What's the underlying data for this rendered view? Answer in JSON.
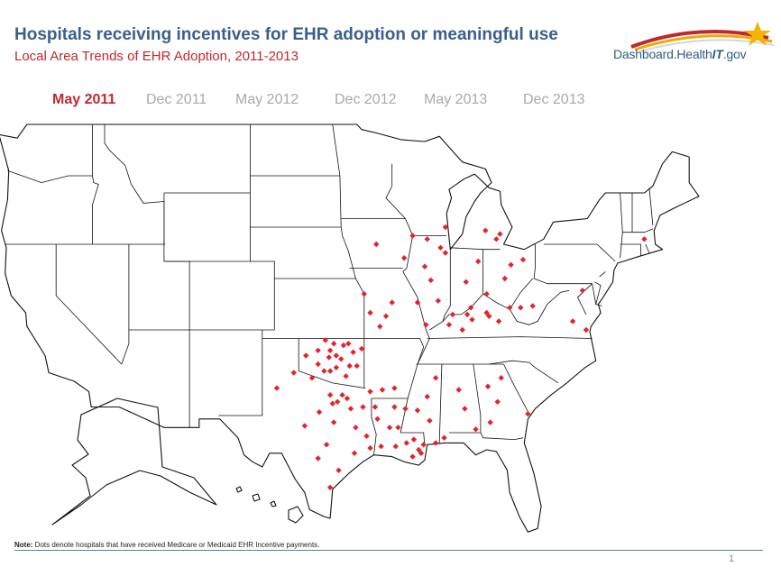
{
  "title": "Hospitals receiving incentives for EHR adoption or meaningful use",
  "subtitle": "Local Area Trends of EHR Adoption, 2011-2013",
  "logo": {
    "prefix": "Dashboard.Health",
    "suffix": "IT",
    "domain": ".gov"
  },
  "tabs": [
    {
      "label": "May 2011",
      "active": true
    },
    {
      "label": "Dec 2011",
      "active": false
    },
    {
      "label": "May 2012",
      "active": false
    },
    {
      "label": "Dec 2012",
      "active": false
    },
    {
      "label": "May 2013",
      "active": false
    },
    {
      "label": "Dec 2013",
      "active": false
    }
  ],
  "note": {
    "label": "Note:",
    "text": " Dots denote hospitals that have received Medicare or Medicaid EHR Incentive payments."
  },
  "page_number": "1",
  "colors": {
    "title": "#3a5f8c",
    "accent": "#c0282d",
    "dot": "#e0262c",
    "inactive_tab": "#a9a9a9"
  },
  "map_regions": [
    "Oklahoma",
    "Texas",
    "Louisiana",
    "Arkansas",
    "Mississippi",
    "Kentucky",
    "Missouri",
    "Iowa",
    "Illinois",
    "Indiana",
    "Michigan",
    "Ohio",
    "Georgia",
    "Alabama",
    "Virginia",
    "Maryland",
    "Massachusetts"
  ],
  "hospital_dots": [
    [
      -96.9,
      35.5
    ],
    [
      -97.5,
      35.4
    ],
    [
      -96.3,
      36.1
    ],
    [
      -95.9,
      36.2
    ],
    [
      -97.1,
      36.2
    ],
    [
      -98.4,
      35.0
    ],
    [
      -97.4,
      34.6
    ],
    [
      -95.5,
      35.7
    ],
    [
      -96.9,
      34.8
    ],
    [
      -97.8,
      36.4
    ],
    [
      -99.4,
      35.5
    ],
    [
      -98.9,
      34.2
    ],
    [
      -96.1,
      34.3
    ],
    [
      -95.2,
      34.9
    ],
    [
      -94.8,
      35.9
    ],
    [
      -97.4,
      35.8
    ],
    [
      -96.5,
      35.3
    ],
    [
      -95.8,
      34.9
    ],
    [
      -98.4,
      35.8
    ],
    [
      -97.9,
      34.6
    ],
    [
      -96.4,
      33.2
    ],
    [
      -96.8,
      32.8
    ],
    [
      -97.2,
      32.7
    ],
    [
      -96.0,
      33.0
    ],
    [
      -95.7,
      32.4
    ],
    [
      -94.7,
      32.5
    ],
    [
      -97.4,
      33.2
    ],
    [
      -98.3,
      32.2
    ],
    [
      -100.4,
      34.5
    ],
    [
      -101.8,
      33.6
    ],
    [
      -97.1,
      31.6
    ],
    [
      -95.3,
      31.3
    ],
    [
      -94.4,
      30.8
    ],
    [
      -97.7,
      30.3
    ],
    [
      -98.4,
      29.5
    ],
    [
      -95.4,
      29.8
    ],
    [
      -94.1,
      30.1
    ],
    [
      -96.7,
      28.8
    ],
    [
      -97.4,
      27.8
    ],
    [
      -99.5,
      31.4
    ],
    [
      -93.7,
      32.5
    ],
    [
      -92.1,
      32.5
    ],
    [
      -91.2,
      32.4
    ],
    [
      -93.2,
      30.2
    ],
    [
      -92.0,
      30.2
    ],
    [
      -91.1,
      30.4
    ],
    [
      -90.1,
      30.0
    ],
    [
      -90.6,
      29.6
    ],
    [
      -89.9,
      29.8
    ],
    [
      -91.8,
      31.3
    ],
    [
      -92.5,
      31.3
    ],
    [
      -90.5,
      30.6
    ],
    [
      -89.7,
      30.3
    ],
    [
      -93.5,
      31.8
    ],
    [
      -92.1,
      33.6
    ],
    [
      -93.1,
      33.5
    ],
    [
      -94.1,
      33.4
    ],
    [
      -90.2,
      32.3
    ],
    [
      -89.2,
      31.7
    ],
    [
      -88.7,
      30.4
    ],
    [
      -88.7,
      34.2
    ],
    [
      -89.4,
      33.1
    ],
    [
      -88.0,
      30.7
    ],
    [
      -86.8,
      33.5
    ],
    [
      -86.3,
      32.4
    ],
    [
      -85.4,
      31.2
    ],
    [
      -84.4,
      33.7
    ],
    [
      -83.6,
      32.8
    ],
    [
      -81.1,
      32.1
    ],
    [
      -84.2,
      31.6
    ],
    [
      -83.3,
      34.2
    ],
    [
      -85.8,
      38.3
    ],
    [
      -84.5,
      38.0
    ],
    [
      -86.5,
      37.0
    ],
    [
      -87.6,
      37.3
    ],
    [
      -83.5,
      37.5
    ],
    [
      -82.6,
      38.3
    ],
    [
      -85.7,
      37.6
    ],
    [
      -84.3,
      37.8
    ],
    [
      -86.1,
      37.9
    ],
    [
      -87.3,
      37.9
    ],
    [
      -94.6,
      39.1
    ],
    [
      -92.3,
      38.6
    ],
    [
      -90.2,
      38.6
    ],
    [
      -92.8,
      37.8
    ],
    [
      -93.3,
      37.2
    ],
    [
      -94.1,
      38.0
    ],
    [
      -89.5,
      37.3
    ],
    [
      -93.6,
      42.0
    ],
    [
      -90.6,
      42.5
    ],
    [
      -91.3,
      41.2
    ],
    [
      -89.6,
      40.7
    ],
    [
      -88.3,
      41.8
    ],
    [
      -87.9,
      41.5
    ],
    [
      -89.4,
      42.3
    ],
    [
      -89.1,
      39.9
    ],
    [
      -88.5,
      38.7
    ],
    [
      -87.9,
      43.0
    ],
    [
      -86.2,
      39.8
    ],
    [
      -85.2,
      41.0
    ],
    [
      -84.6,
      42.8
    ],
    [
      -83.7,
      42.3
    ],
    [
      -83.4,
      42.6
    ],
    [
      -83.0,
      40.0
    ],
    [
      -84.5,
      39.1
    ],
    [
      -82.5,
      40.8
    ],
    [
      -81.5,
      41.1
    ],
    [
      -80.7,
      38.4
    ],
    [
      -81.7,
      38.3
    ],
    [
      -77.4,
      37.5
    ],
    [
      -76.6,
      39.3
    ],
    [
      -76.3,
      37.0
    ],
    [
      -71.5,
      42.3
    ]
  ]
}
